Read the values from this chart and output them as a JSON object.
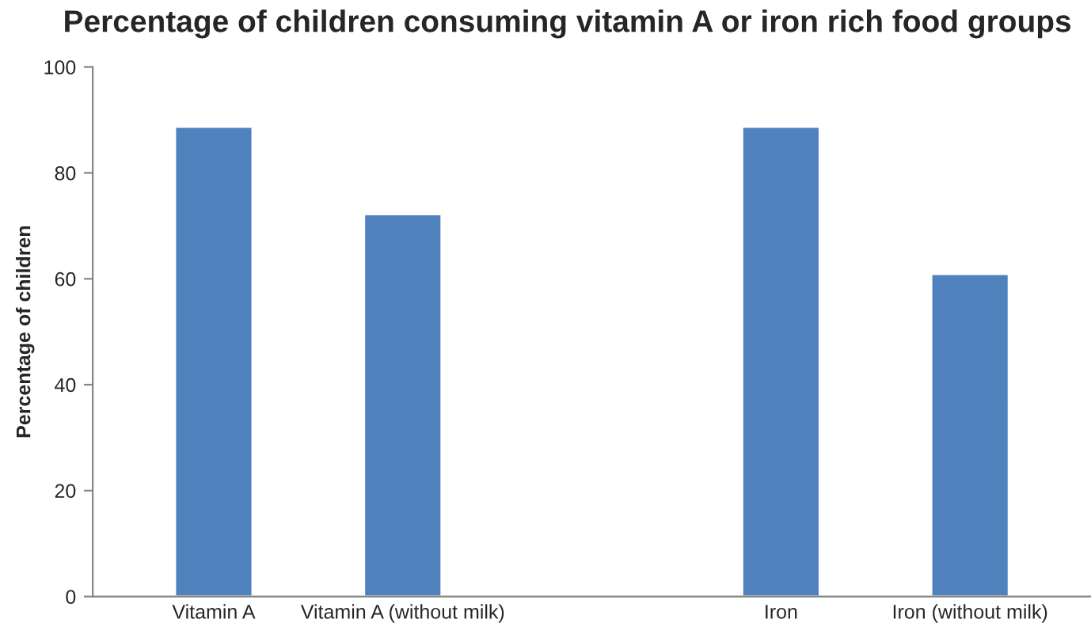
{
  "chart_data": {
    "type": "bar",
    "title": "Percentage of children consuming vitamin A or iron rich food groups",
    "ylabel": "Percentage of children",
    "categories": [
      "Vitamin A",
      "Vitamin A (without milk)",
      null,
      "Iron",
      "Iron (without milk)"
    ],
    "values": [
      88.7,
      72.2,
      null,
      88.7,
      60.9
    ],
    "color": "#4f81bd",
    "ylim": [
      0,
      100
    ],
    "yticks": [
      0,
      20,
      40,
      60,
      80,
      100
    ],
    "grid": false,
    "legend": false
  }
}
